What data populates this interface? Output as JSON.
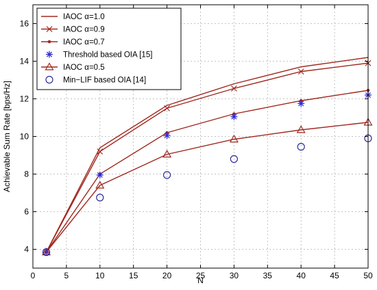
{
  "chart_data": {
    "type": "line",
    "title": "",
    "xlabel": "N",
    "ylabel": "Achievable Sum Rate [bps/Hz]",
    "xlim": [
      0,
      50
    ],
    "ylim": [
      3,
      17
    ],
    "xticks": [
      0,
      5,
      10,
      15,
      20,
      25,
      30,
      35,
      40,
      45,
      50
    ],
    "yticks": [
      4,
      6,
      8,
      10,
      12,
      14,
      16
    ],
    "grid": true,
    "legend_position": "top-left",
    "x": [
      2,
      10,
      20,
      30,
      40,
      50
    ],
    "series": [
      {
        "name": "IAOC α=1.0",
        "values": [
          3.85,
          9.4,
          11.65,
          12.8,
          13.7,
          14.2
        ],
        "color": "#a0281e",
        "line": "solid",
        "marker": "none"
      },
      {
        "name": "IAOC α=0.9",
        "values": [
          3.85,
          9.2,
          11.5,
          12.55,
          13.45,
          13.9
        ],
        "color": "#a0281e",
        "line": "solid",
        "marker": "x"
      },
      {
        "name": "IAOC α=0.7",
        "values": [
          3.85,
          8.0,
          10.2,
          11.2,
          11.9,
          12.45
        ],
        "color": "#a0281e",
        "line": "solid",
        "marker": "dot"
      },
      {
        "name": "Threshold based OIA [15]",
        "values": [
          3.85,
          7.95,
          10.05,
          11.05,
          11.75,
          12.2
        ],
        "color": "#2b2bd9",
        "line": "none",
        "marker": "star"
      },
      {
        "name": "IAOC α=0.5",
        "values": [
          3.85,
          7.4,
          9.05,
          9.85,
          10.35,
          10.75
        ],
        "color": "#a0281e",
        "line": "solid",
        "marker": "triangle"
      },
      {
        "name": "Min−LIF based OIA [14]",
        "values": [
          3.85,
          6.75,
          7.95,
          8.8,
          9.45,
          9.9
        ],
        "color": "#2b2b9e",
        "line": "none",
        "marker": "circle"
      }
    ]
  }
}
